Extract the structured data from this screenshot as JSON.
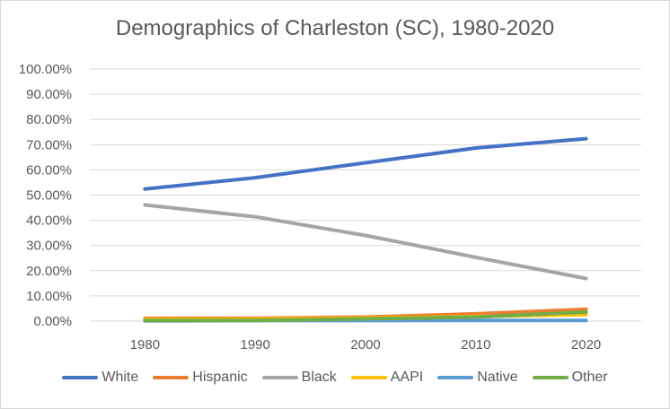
{
  "chart_data": {
    "type": "line",
    "title": "Demographics of Charleston (SC), 1980-2020",
    "xlabel": "",
    "ylabel": "",
    "categories": [
      "1980",
      "1990",
      "2000",
      "2010",
      "2020"
    ],
    "ylim": [
      0,
      100
    ],
    "ytick_step": 10,
    "ytick_labels": [
      "0.00%",
      "10.00%",
      "20.00%",
      "30.00%",
      "40.00%",
      "50.00%",
      "60.00%",
      "70.00%",
      "80.00%",
      "90.00%",
      "100.00%"
    ],
    "grid": true,
    "legend_position": "bottom",
    "series": [
      {
        "name": "White",
        "color": "#4472C4",
        "values": [
          52.4,
          56.9,
          62.8,
          68.7,
          72.4
        ]
      },
      {
        "name": "Hispanic",
        "color": "#ED7D31",
        "values": [
          1.1,
          1.1,
          1.6,
          2.9,
          4.7
        ]
      },
      {
        "name": "Black",
        "color": "#A5A5A5",
        "values": [
          46.1,
          41.4,
          34.0,
          25.3,
          16.9
        ]
      },
      {
        "name": "AAPI",
        "color": "#FFC000",
        "values": [
          0.6,
          0.7,
          1.2,
          1.8,
          2.6
        ]
      },
      {
        "name": "Native",
        "color": "#5B9BD5",
        "values": [
          0.1,
          0.2,
          0.2,
          0.3,
          0.3
        ]
      },
      {
        "name": "Other",
        "color": "#70AD47",
        "values": [
          0.2,
          0.3,
          0.9,
          1.6,
          3.6
        ]
      }
    ]
  }
}
